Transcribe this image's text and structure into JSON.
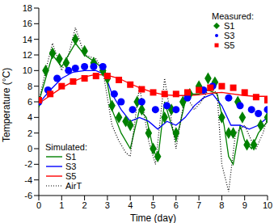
{
  "chart_data": {
    "type": "line",
    "x_label": "Time (day)",
    "y_label": "Temperature (°C)",
    "xlim": [
      0,
      10
    ],
    "xticks": [
      0,
      1,
      2,
      3,
      4,
      5,
      6,
      7,
      8,
      9,
      10
    ],
    "ylim": [
      -6,
      18
    ],
    "yticks": [
      -6,
      -4,
      -2,
      0,
      2,
      4,
      6,
      8,
      10,
      12,
      14,
      16,
      18
    ],
    "annotations": [
      "Measured:",
      "Simulated:"
    ],
    "series": [
      {
        "name": "S1",
        "group": "Measured:",
        "type": "scatter",
        "marker": "diamond",
        "color": "#008000",
        "x": [
          0,
          0.3,
          0.6,
          0.9,
          1.2,
          1.6,
          2.0,
          2.4,
          2.8,
          3.0,
          3.2,
          3.5,
          3.8,
          4.0,
          4.3,
          4.5,
          4.8,
          5.0,
          5.2,
          5.5,
          5.8,
          6.0,
          6.3,
          6.6,
          7.0,
          7.4,
          7.7,
          8.0,
          8.3,
          8.5,
          8.7,
          8.9,
          9.1,
          9.4,
          9.7,
          10
        ],
        "values": [
          6,
          10,
          12.2,
          11.5,
          11,
          14,
          12.5,
          11,
          10,
          9,
          5.5,
          4,
          3.5,
          3,
          6,
          5,
          2,
          0,
          -1,
          4,
          5,
          2,
          6,
          7,
          8,
          9,
          8.5,
          4,
          2,
          2,
          6,
          4,
          0.5,
          0.5,
          3,
          4
        ]
      },
      {
        "name": "S3",
        "group": "Measured:",
        "type": "scatter",
        "marker": "circle",
        "color": "#0000ff",
        "x": [
          0,
          0.4,
          0.8,
          1.3,
          1.6,
          2.0,
          2.4,
          2.8,
          3.3,
          3.6,
          4.1,
          4.5,
          5.1,
          5.6,
          6.0,
          6.5,
          7.2,
          7.6,
          8.3,
          8.8,
          9.3,
          9.6,
          10
        ],
        "values": [
          6,
          7.5,
          9,
          10,
          10.3,
          10.5,
          10.5,
          10.5,
          7,
          6,
          5,
          6,
          5,
          5.5,
          5,
          6.5,
          7.5,
          8,
          6.5,
          5.5,
          5,
          4.5,
          5
        ]
      },
      {
        "name": "S5",
        "group": "Measured:",
        "type": "scatter",
        "marker": "square",
        "color": "#ff0000",
        "x": [
          0,
          0.5,
          1,
          1.5,
          2,
          2.5,
          3,
          3.5,
          4,
          4.5,
          5,
          5.5,
          6,
          6.5,
          7,
          7.5,
          8,
          8.5,
          9,
          9.5,
          10
        ],
        "values": [
          6.2,
          7,
          8,
          8.6,
          9,
          9.3,
          9.3,
          8.8,
          8.2,
          7.6,
          7.2,
          7,
          7,
          7.2,
          7.5,
          7.8,
          8,
          7.8,
          7.2,
          6.6,
          6.2
        ]
      },
      {
        "name": "S1",
        "group": "Simulated:",
        "type": "line",
        "line_style": "solid",
        "color": "#008000",
        "x": [
          0,
          0.3,
          0.6,
          1.0,
          1.6,
          2.0,
          2.5,
          2.9,
          3.2,
          3.6,
          4.0,
          4.4,
          4.7,
          5.0,
          5.2,
          5.5,
          5.8,
          6.0,
          6.4,
          6.7,
          7.0,
          7.4,
          7.8,
          8.1,
          8.3,
          8.5,
          8.8,
          9.0,
          9.3,
          9.6,
          10
        ],
        "values": [
          6,
          9,
          12,
          10.5,
          13.5,
          12,
          11,
          10,
          5,
          2,
          0,
          5,
          4,
          0,
          -1.5,
          6,
          3,
          1,
          6,
          7,
          7,
          7.5,
          7,
          3,
          -1,
          -2,
          3,
          1,
          0,
          2,
          3.5
        ]
      },
      {
        "name": "S3",
        "group": "Simulated:",
        "type": "line",
        "line_style": "solid",
        "color": "#0000ff",
        "x": [
          0,
          0.5,
          1,
          1.5,
          2,
          2.5,
          2.9,
          3.2,
          3.6,
          4.0,
          4.4,
          4.8,
          5.2,
          5.6,
          6.0,
          6.4,
          6.8,
          7.2,
          7.6,
          8.0,
          8.4,
          8.8,
          9.2,
          9.6,
          10
        ],
        "values": [
          5.8,
          7.5,
          9,
          9.8,
          10,
          10,
          9.5,
          7,
          5,
          3.5,
          4,
          3.5,
          2.5,
          3.5,
          3,
          4,
          5.5,
          6.5,
          7,
          5.5,
          3,
          3,
          2.5,
          3,
          4
        ]
      },
      {
        "name": "S5",
        "group": "Simulated:",
        "type": "line",
        "line_style": "solid",
        "color": "#ff0000",
        "x": [
          0,
          0.5,
          1,
          1.5,
          2,
          2.5,
          3,
          3.5,
          4,
          4.5,
          5,
          5.5,
          6,
          6.5,
          7,
          7.5,
          8,
          8.5,
          9,
          9.5,
          10
        ],
        "values": [
          5.8,
          6.8,
          7.8,
          8.6,
          9.2,
          9.5,
          9.4,
          9,
          8.3,
          7.7,
          7.2,
          6.9,
          6.8,
          6.8,
          6.9,
          7.1,
          7.2,
          7,
          6.8,
          6.7,
          6.7
        ]
      },
      {
        "name": "AirT",
        "group": "Simulated:",
        "type": "line",
        "line_style": "dotted",
        "color": "#000000",
        "x": [
          0,
          0.3,
          0.6,
          1.0,
          1.3,
          1.6,
          2.0,
          2.5,
          2.8,
          3.2,
          3.5,
          3.8,
          4.0,
          4.4,
          4.8,
          5.1,
          5.5,
          6.0,
          6.4,
          6.8,
          7.1,
          7.5,
          7.8,
          8.0,
          8.3,
          8.6,
          9.0,
          9.3,
          9.5,
          9.8,
          10
        ],
        "values": [
          6,
          10,
          13.5,
          10,
          12,
          15.5,
          12,
          11.5,
          10,
          3,
          1,
          -0.5,
          -1,
          8,
          1,
          -2,
          9,
          0,
          7,
          5,
          6,
          8,
          7,
          -2,
          -5.5,
          2,
          3,
          1,
          0,
          2,
          4
        ]
      }
    ]
  }
}
